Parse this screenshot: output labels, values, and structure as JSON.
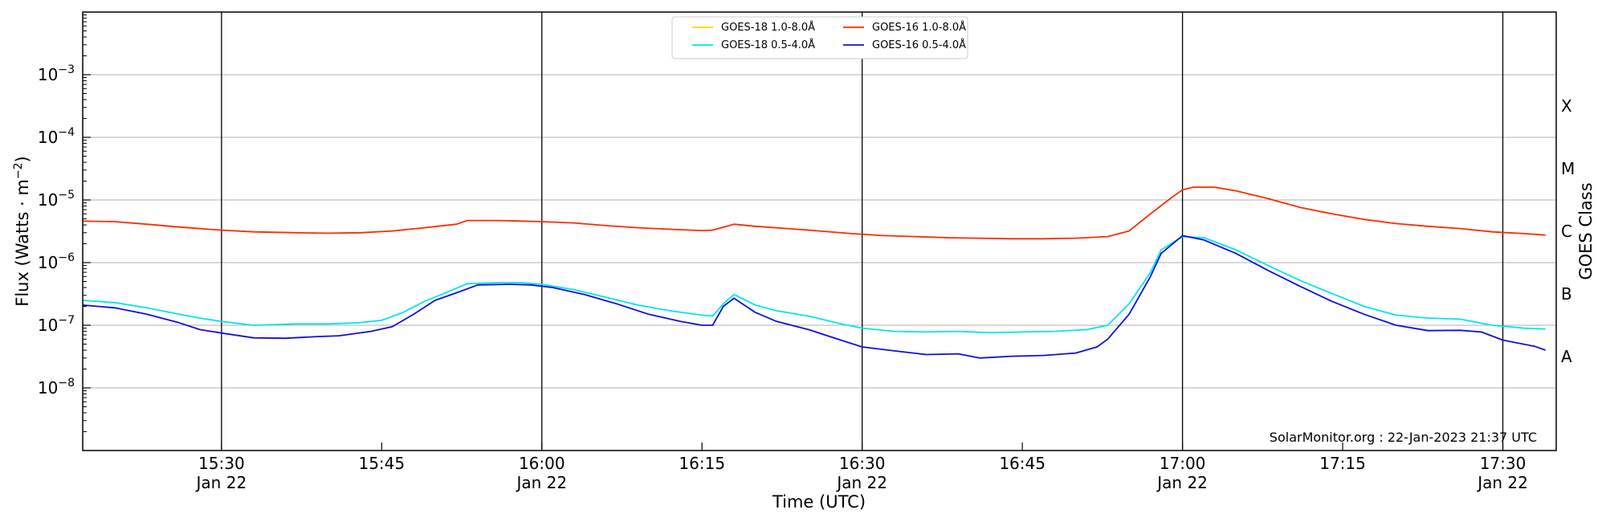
{
  "chart_data": {
    "type": "line",
    "xlabel": "Time (UTC)",
    "ylabel": "Flux (Watts · m",
    "ylabel_superscript": "−2",
    "ylabel_suffix": ")",
    "right_label": "GOES Class",
    "yscale": "log",
    "xlim": [
      "15:17",
      "17:35"
    ],
    "ylim": [
      1e-09,
      0.01
    ],
    "grid": "horizontal",
    "legend_position": "top-center",
    "x_ticks": [
      {
        "time": "15:30",
        "label": "15:30",
        "sublabel": "Jan 22"
      },
      {
        "time": "15:45",
        "label": "15:45",
        "sublabel": ""
      },
      {
        "time": "16:00",
        "label": "16:00",
        "sublabel": "Jan 22"
      },
      {
        "time": "16:15",
        "label": "16:15",
        "sublabel": ""
      },
      {
        "time": "16:30",
        "label": "16:30",
        "sublabel": "Jan 22"
      },
      {
        "time": "16:45",
        "label": "16:45",
        "sublabel": ""
      },
      {
        "time": "17:00",
        "label": "17:00",
        "sublabel": "Jan 22"
      },
      {
        "time": "17:15",
        "label": "17:15",
        "sublabel": ""
      },
      {
        "time": "17:30",
        "label": "17:30",
        "sublabel": "Jan 22"
      }
    ],
    "vertical_lines": [
      "15:30",
      "16:00",
      "16:30",
      "17:00",
      "17:30"
    ],
    "y_ticks": [
      {
        "exp": -8,
        "base": "10",
        "sup": "−8"
      },
      {
        "exp": -7,
        "base": "10",
        "sup": "−7"
      },
      {
        "exp": -6,
        "base": "10",
        "sup": "−6"
      },
      {
        "exp": -5,
        "base": "10",
        "sup": "−5"
      },
      {
        "exp": -4,
        "base": "10",
        "sup": "−4"
      },
      {
        "exp": -3,
        "base": "10",
        "sup": "−3"
      }
    ],
    "goes_classes": [
      {
        "label": "A",
        "exp": -7.5
      },
      {
        "label": "B",
        "exp": -6.5
      },
      {
        "label": "C",
        "exp": -5.5
      },
      {
        "label": "M",
        "exp": -4.5
      },
      {
        "label": "X",
        "exp": -3.5
      }
    ],
    "credit": "SolarMonitor.org : 22-Jan-2023 21:37 UTC",
    "series": [
      {
        "name": "GOES-18 1.0-8.0Å",
        "color": "#ffd700",
        "points": []
      },
      {
        "name": "GOES-18 0.5-4.0Å",
        "color": "#00e5ee",
        "points": [
          [
            "15:17",
            2.5e-07
          ],
          [
            "15:20",
            2.3e-07
          ],
          [
            "15:23",
            1.9e-07
          ],
          [
            "15:26",
            1.5e-07
          ],
          [
            "15:28",
            1.3e-07
          ],
          [
            "15:30",
            1.15e-07
          ],
          [
            "15:33",
            1e-07
          ],
          [
            "15:37",
            1.05e-07
          ],
          [
            "15:40",
            1.05e-07
          ],
          [
            "15:43",
            1.1e-07
          ],
          [
            "15:45",
            1.2e-07
          ],
          [
            "15:47",
            1.6e-07
          ],
          [
            "15:49",
            2.4e-07
          ],
          [
            "15:51",
            3.3e-07
          ],
          [
            "15:53",
            4.6e-07
          ],
          [
            "15:56",
            4.8e-07
          ],
          [
            "15:58",
            4.8e-07
          ],
          [
            "16:00",
            4.5e-07
          ],
          [
            "16:03",
            3.7e-07
          ],
          [
            "16:06",
            2.8e-07
          ],
          [
            "16:09",
            2.1e-07
          ],
          [
            "16:12",
            1.7e-07
          ],
          [
            "16:15",
            1.45e-07
          ],
          [
            "16:16",
            1.4e-07
          ],
          [
            "16:17",
            2.2e-07
          ],
          [
            "16:18",
            3.1e-07
          ],
          [
            "16:20",
            2.1e-07
          ],
          [
            "16:22",
            1.7e-07
          ],
          [
            "16:25",
            1.4e-07
          ],
          [
            "16:28",
            1.05e-07
          ],
          [
            "16:30",
            9e-08
          ],
          [
            "16:33",
            8e-08
          ],
          [
            "16:36",
            7.8e-08
          ],
          [
            "16:39",
            8e-08
          ],
          [
            "16:42",
            7.6e-08
          ],
          [
            "16:45",
            7.8e-08
          ],
          [
            "16:48",
            8e-08
          ],
          [
            "16:51",
            8.5e-08
          ],
          [
            "16:53",
            1e-07
          ],
          [
            "16:55",
            2.2e-07
          ],
          [
            "16:57",
            7e-07
          ],
          [
            "16:58",
            1.6e-06
          ],
          [
            "17:00",
            2.6e-06
          ],
          [
            "17:02",
            2.5e-06
          ],
          [
            "17:05",
            1.6e-06
          ],
          [
            "17:08",
            9e-07
          ],
          [
            "17:11",
            5.2e-07
          ],
          [
            "17:14",
            3.2e-07
          ],
          [
            "17:17",
            2e-07
          ],
          [
            "17:20",
            1.45e-07
          ],
          [
            "17:23",
            1.3e-07
          ],
          [
            "17:26",
            1.25e-07
          ],
          [
            "17:29",
            1e-07
          ],
          [
            "17:32",
            9e-08
          ],
          [
            "17:34",
            8.7e-08
          ]
        ]
      },
      {
        "name": "GOES-16 1.0-8.0Å",
        "color": "#ff2a00",
        "points": [
          [
            "15:17",
            4.6e-06
          ],
          [
            "15:20",
            4.5e-06
          ],
          [
            "15:23",
            4.1e-06
          ],
          [
            "15:26",
            3.7e-06
          ],
          [
            "15:30",
            3.3e-06
          ],
          [
            "15:33",
            3.1e-06
          ],
          [
            "15:37",
            3e-06
          ],
          [
            "15:40",
            2.95e-06
          ],
          [
            "15:43",
            3e-06
          ],
          [
            "15:46",
            3.2e-06
          ],
          [
            "15:49",
            3.6e-06
          ],
          [
            "15:52",
            4.1e-06
          ],
          [
            "15:53",
            4.7e-06
          ],
          [
            "15:56",
            4.7e-06
          ],
          [
            "15:58",
            4.6e-06
          ],
          [
            "16:00",
            4.5e-06
          ],
          [
            "16:03",
            4.3e-06
          ],
          [
            "16:06",
            3.9e-06
          ],
          [
            "16:09",
            3.6e-06
          ],
          [
            "16:12",
            3.4e-06
          ],
          [
            "16:15",
            3.25e-06
          ],
          [
            "16:16",
            3.3e-06
          ],
          [
            "16:18",
            4.1e-06
          ],
          [
            "16:20",
            3.8e-06
          ],
          [
            "16:23",
            3.5e-06
          ],
          [
            "16:26",
            3.2e-06
          ],
          [
            "16:29",
            2.9e-06
          ],
          [
            "16:32",
            2.7e-06
          ],
          [
            "16:35",
            2.6e-06
          ],
          [
            "16:38",
            2.5e-06
          ],
          [
            "16:41",
            2.45e-06
          ],
          [
            "16:44",
            2.4e-06
          ],
          [
            "16:47",
            2.4e-06
          ],
          [
            "16:50",
            2.45e-06
          ],
          [
            "16:53",
            2.6e-06
          ],
          [
            "16:55",
            3.2e-06
          ],
          [
            "16:57",
            6e-06
          ],
          [
            "16:59",
            1.1e-05
          ],
          [
            "17:00",
            1.45e-05
          ],
          [
            "17:01",
            1.6e-05
          ],
          [
            "17:03",
            1.6e-05
          ],
          [
            "17:05",
            1.4e-05
          ],
          [
            "17:08",
            1.05e-05
          ],
          [
            "17:11",
            7.6e-06
          ],
          [
            "17:14",
            6e-06
          ],
          [
            "17:17",
            4.9e-06
          ],
          [
            "17:20",
            4.2e-06
          ],
          [
            "17:23",
            3.8e-06
          ],
          [
            "17:26",
            3.5e-06
          ],
          [
            "17:29",
            3.1e-06
          ],
          [
            "17:32",
            2.9e-06
          ],
          [
            "17:34",
            2.75e-06
          ]
        ]
      },
      {
        "name": "GOES-16 0.5-4.0Å",
        "color": "#1010d8",
        "points": [
          [
            "15:17",
            2.1e-07
          ],
          [
            "15:20",
            1.9e-07
          ],
          [
            "15:23",
            1.5e-07
          ],
          [
            "15:26",
            1.1e-07
          ],
          [
            "15:28",
            8.5e-08
          ],
          [
            "15:30",
            7.5e-08
          ],
          [
            "15:33",
            6.3e-08
          ],
          [
            "15:36",
            6.2e-08
          ],
          [
            "15:39",
            6.6e-08
          ],
          [
            "15:41",
            6.8e-08
          ],
          [
            "15:44",
            8e-08
          ],
          [
            "15:46",
            9.5e-08
          ],
          [
            "15:48",
            1.5e-07
          ],
          [
            "15:50",
            2.5e-07
          ],
          [
            "15:52",
            3.3e-07
          ],
          [
            "15:54",
            4.4e-07
          ],
          [
            "15:57",
            4.5e-07
          ],
          [
            "15:59",
            4.4e-07
          ],
          [
            "16:01",
            4e-07
          ],
          [
            "16:04",
            3.1e-07
          ],
          [
            "16:07",
            2.2e-07
          ],
          [
            "16:10",
            1.5e-07
          ],
          [
            "16:13",
            1.15e-07
          ],
          [
            "16:15",
            1e-07
          ],
          [
            "16:16",
            1e-07
          ],
          [
            "16:17",
            2e-07
          ],
          [
            "16:18",
            2.7e-07
          ],
          [
            "16:20",
            1.6e-07
          ],
          [
            "16:22",
            1.15e-07
          ],
          [
            "16:25",
            8.5e-08
          ],
          [
            "16:28",
            5.8e-08
          ],
          [
            "16:30",
            4.5e-08
          ],
          [
            "16:33",
            3.9e-08
          ],
          [
            "16:36",
            3.4e-08
          ],
          [
            "16:39",
            3.5e-08
          ],
          [
            "16:41",
            3e-08
          ],
          [
            "16:44",
            3.2e-08
          ],
          [
            "16:47",
            3.3e-08
          ],
          [
            "16:50",
            3.6e-08
          ],
          [
            "16:52",
            4.5e-08
          ],
          [
            "16:53",
            6e-08
          ],
          [
            "16:55",
            1.5e-07
          ],
          [
            "16:57",
            6e-07
          ],
          [
            "16:58",
            1.4e-06
          ],
          [
            "17:00",
            2.7e-06
          ],
          [
            "17:02",
            2.3e-06
          ],
          [
            "17:05",
            1.4e-06
          ],
          [
            "17:08",
            7.5e-07
          ],
          [
            "17:11",
            4.2e-07
          ],
          [
            "17:14",
            2.4e-07
          ],
          [
            "17:17",
            1.5e-07
          ],
          [
            "17:20",
            1e-07
          ],
          [
            "17:23",
            8.2e-08
          ],
          [
            "17:26",
            8.3e-08
          ],
          [
            "17:28",
            7.8e-08
          ],
          [
            "17:30",
            5.8e-08
          ],
          [
            "17:33",
            4.6e-08
          ],
          [
            "17:34",
            4e-08
          ]
        ]
      }
    ]
  }
}
